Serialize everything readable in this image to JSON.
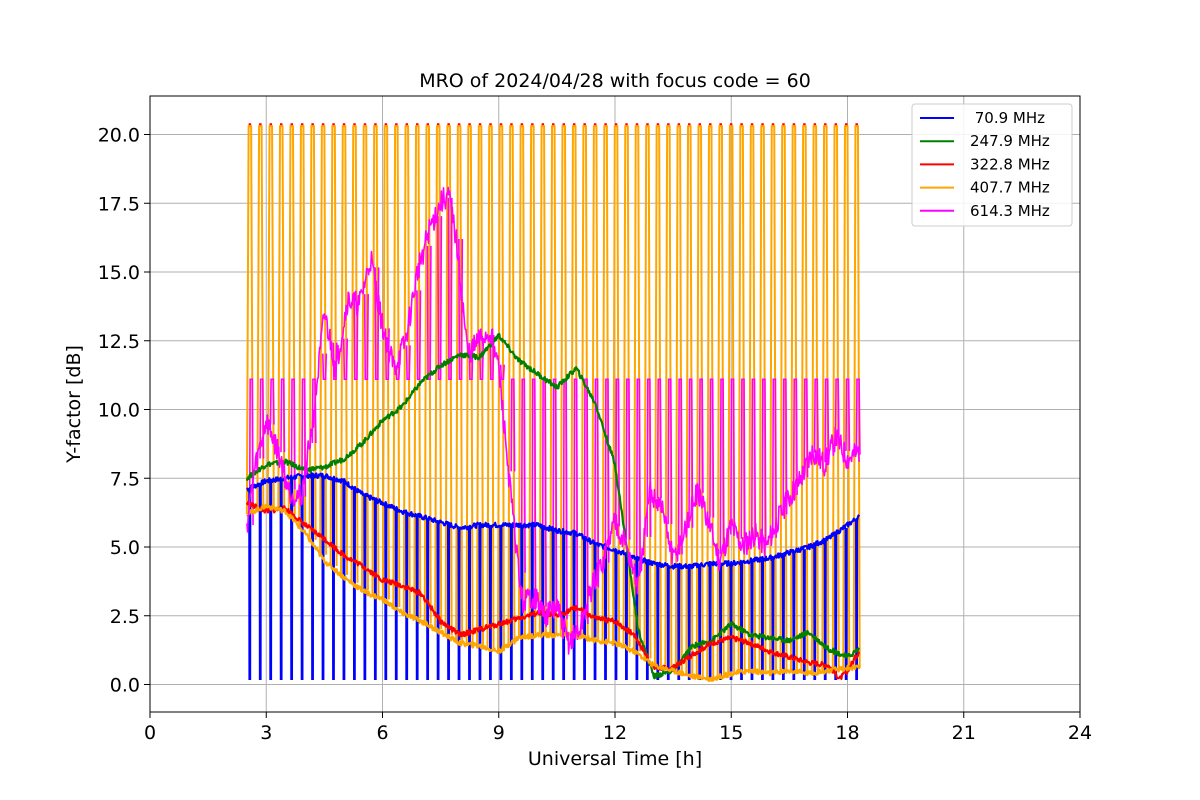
{
  "chart_data": {
    "type": "line",
    "title": "MRO of 2024/04/28 with focus code = 60",
    "xlabel": "Universal Time [h]",
    "ylabel": "Y-factor [dB]",
    "xlim": [
      0,
      24
    ],
    "ylim": [
      -1.0,
      21.4
    ],
    "xticks": [
      0,
      3,
      6,
      9,
      12,
      15,
      18,
      21,
      24
    ],
    "xtick_labels": [
      "0",
      "3",
      "6",
      "9",
      "12",
      "15",
      "18",
      "21",
      "24"
    ],
    "yticks": [
      0.0,
      2.5,
      5.0,
      7.5,
      10.0,
      12.5,
      15.0,
      17.5,
      20.0
    ],
    "ytick_labels": [
      "0.0",
      "2.5",
      "5.0",
      "7.5",
      "10.0",
      "12.5",
      "15.0",
      "17.5",
      "20.0"
    ],
    "grid": true,
    "legend_position": "top-right",
    "calibration_spikes": {
      "start_h": 2.5,
      "end_h": 18.3,
      "period_h": 0.27,
      "top_dB": 20.3,
      "plateau_dB": 11.1
    },
    "series": [
      {
        "name": " 70.9 MHz",
        "color": "#0000ff",
        "spike_low": 0.2,
        "x": [
          2.5,
          3.0,
          3.5,
          4.0,
          4.5,
          5.0,
          5.5,
          6.0,
          6.5,
          7.0,
          7.5,
          8.0,
          8.5,
          9.0,
          9.5,
          10.0,
          10.5,
          11.0,
          11.5,
          12.0,
          12.5,
          13.0,
          13.5,
          14.0,
          14.5,
          15.0,
          15.5,
          16.0,
          16.5,
          17.0,
          17.5,
          18.0,
          18.3
        ],
        "y": [
          7.1,
          7.4,
          7.5,
          7.6,
          7.6,
          7.4,
          6.9,
          6.6,
          6.3,
          6.1,
          5.9,
          5.7,
          5.8,
          5.8,
          5.8,
          5.8,
          5.6,
          5.5,
          5.1,
          4.9,
          4.6,
          4.4,
          4.3,
          4.3,
          4.4,
          4.4,
          4.5,
          4.6,
          4.8,
          5.0,
          5.3,
          5.8,
          6.1
        ]
      },
      {
        "name": "247.9 MHz",
        "color": "#008000",
        "x": [
          2.5,
          3.0,
          3.5,
          4.0,
          4.5,
          5.0,
          5.5,
          6.0,
          6.5,
          7.0,
          7.5,
          8.0,
          8.5,
          9.0,
          9.5,
          10.0,
          10.5,
          11.0,
          11.5,
          12.0,
          12.3,
          12.6,
          13.0,
          13.5,
          14.0,
          14.5,
          15.0,
          15.5,
          16.0,
          16.5,
          17.0,
          17.5,
          18.0,
          18.3
        ],
        "y": [
          7.5,
          8.0,
          8.1,
          7.8,
          7.9,
          8.2,
          8.8,
          9.6,
          10.1,
          11.0,
          11.6,
          12.0,
          11.9,
          12.7,
          11.8,
          11.3,
          10.8,
          11.5,
          10.2,
          8.0,
          5.0,
          2.0,
          0.3,
          0.5,
          1.4,
          1.6,
          2.2,
          1.8,
          1.7,
          1.6,
          1.9,
          1.3,
          1.0,
          1.3
        ]
      },
      {
        "name": "322.8 MHz",
        "color": "#ff0000",
        "x": [
          2.5,
          3.0,
          3.5,
          4.0,
          4.5,
          5.0,
          5.5,
          6.0,
          6.5,
          7.0,
          7.5,
          8.0,
          8.5,
          9.0,
          9.5,
          10.0,
          10.5,
          11.0,
          11.5,
          12.0,
          12.5,
          13.0,
          13.5,
          14.0,
          14.5,
          15.0,
          15.5,
          16.0,
          16.5,
          17.0,
          17.5,
          17.8,
          18.0,
          18.3
        ],
        "y": [
          6.6,
          6.3,
          6.4,
          5.8,
          5.3,
          4.7,
          4.3,
          3.8,
          3.6,
          3.3,
          2.3,
          1.8,
          2.0,
          2.2,
          2.4,
          2.6,
          2.5,
          2.8,
          2.4,
          2.3,
          1.8,
          0.6,
          0.6,
          1.1,
          1.5,
          1.7,
          1.5,
          1.2,
          1.0,
          0.8,
          0.7,
          0.2,
          0.5,
          1.2
        ]
      },
      {
        "name": "407.7 MHz",
        "color": "#ffa500",
        "x": [
          2.5,
          3.0,
          3.5,
          4.0,
          4.5,
          5.0,
          5.5,
          6.0,
          6.5,
          7.0,
          7.5,
          8.0,
          8.5,
          9.0,
          9.5,
          10.0,
          10.5,
          11.0,
          11.5,
          12.0,
          12.5,
          13.0,
          13.5,
          14.0,
          14.5,
          15.0,
          15.5,
          16.0,
          16.5,
          17.0,
          17.5,
          18.0,
          18.3
        ],
        "y": [
          6.2,
          6.5,
          6.3,
          5.5,
          4.5,
          3.9,
          3.4,
          3.1,
          2.6,
          2.3,
          1.9,
          1.5,
          1.4,
          1.2,
          1.7,
          1.8,
          1.8,
          1.8,
          1.6,
          1.5,
          1.2,
          0.7,
          0.5,
          0.3,
          0.2,
          0.4,
          0.5,
          0.4,
          0.5,
          0.4,
          0.5,
          0.6,
          0.6
        ]
      },
      {
        "name": "614.3 MHz",
        "color": "#ff00ff",
        "x": [
          2.5,
          2.7,
          3.0,
          3.3,
          3.6,
          3.9,
          4.2,
          4.5,
          4.8,
          5.1,
          5.4,
          5.7,
          6.0,
          6.3,
          6.6,
          6.9,
          7.2,
          7.5,
          7.7,
          7.9,
          8.2,
          8.5,
          8.8,
          9.0,
          9.3,
          9.6,
          9.9,
          10.2,
          10.5,
          10.8,
          11.1,
          11.4,
          11.7,
          12.0,
          12.3,
          12.6,
          12.9,
          13.2,
          13.5,
          13.8,
          14.1,
          14.4,
          14.7,
          15.0,
          15.3,
          15.6,
          15.9,
          16.2,
          16.5,
          16.8,
          17.1,
          17.4,
          17.7,
          18.0,
          18.3
        ],
        "y": [
          5.8,
          7.8,
          9.6,
          8.5,
          7.0,
          6.8,
          9.5,
          13.5,
          11.5,
          14.0,
          13.8,
          15.5,
          13.0,
          11.5,
          12.5,
          15.0,
          16.5,
          17.5,
          17.8,
          16.2,
          12.0,
          12.5,
          12.8,
          11.5,
          7.0,
          3.0,
          3.2,
          2.5,
          2.8,
          1.5,
          2.0,
          3.5,
          4.5,
          6.0,
          5.0,
          3.5,
          7.0,
          6.5,
          4.5,
          5.5,
          7.0,
          6.0,
          4.5,
          5.8,
          5.0,
          5.5,
          5.0,
          6.0,
          6.8,
          7.5,
          8.5,
          8.0,
          9.0,
          8.2,
          8.5
        ]
      }
    ]
  }
}
